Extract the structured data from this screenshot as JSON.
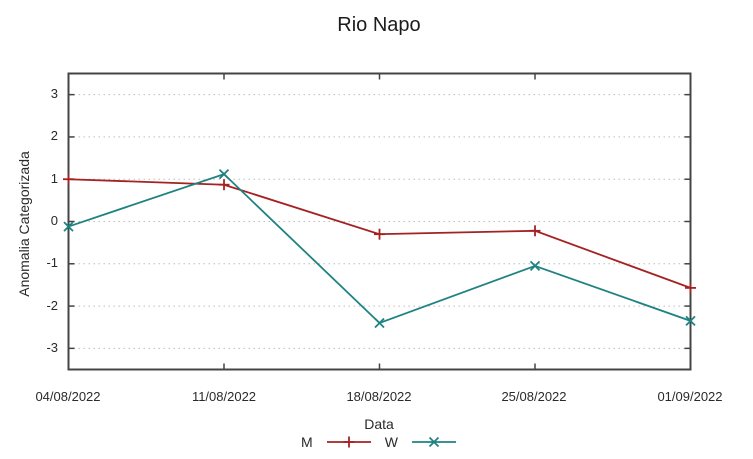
{
  "chart_data": {
    "type": "line",
    "title": "Rio Napo",
    "xlabel": "Data",
    "ylabel": "Anomalia Categorizada",
    "categories": [
      "04/08/2022",
      "11/08/2022",
      "18/08/2022",
      "25/08/2022",
      "01/09/2022"
    ],
    "series": [
      {
        "name": "M",
        "marker": "plus",
        "color": "#a42222",
        "values": [
          1.0,
          0.87,
          -0.3,
          -0.22,
          -1.57
        ]
      },
      {
        "name": "W",
        "marker": "cross",
        "color": "#1f8282",
        "values": [
          -0.12,
          1.12,
          -2.4,
          -1.05,
          -2.35
        ]
      }
    ],
    "ylim": [
      -3.5,
      3.5
    ],
    "yticks": [
      3,
      2,
      1,
      0,
      -1,
      -2,
      -3
    ],
    "grid": "horizontal-dotted",
    "legend_position": "bottom",
    "border_color": "#444444",
    "grid_color": "#bdbdbd"
  }
}
